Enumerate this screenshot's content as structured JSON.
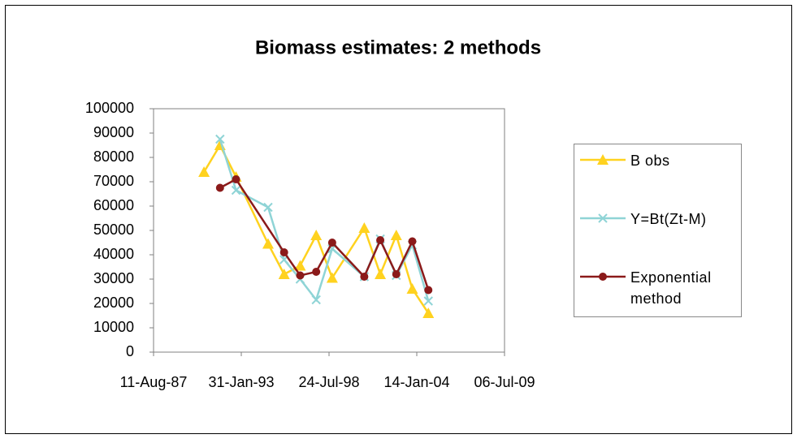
{
  "chart_data": {
    "type": "line",
    "title": "Biomass estimates: 2 methods",
    "xlim": [
      32000,
      40000
    ],
    "xticks": [
      {
        "value": 32000,
        "label": "11-Aug-87"
      },
      {
        "value": 34000,
        "label": "31-Jan-93"
      },
      {
        "value": 36000,
        "label": "24-Jul-98"
      },
      {
        "value": 38000,
        "label": "14-Jan-04"
      },
      {
        "value": 40000,
        "label": "06-Jul-09"
      }
    ],
    "ylim": [
      0,
      100000
    ],
    "yticks": [
      0,
      10000,
      20000,
      30000,
      40000,
      50000,
      60000,
      70000,
      80000,
      90000,
      100000
    ],
    "grid": false,
    "legend": "right",
    "series": [
      {
        "name": "B obs",
        "color": "#ffd21f",
        "marker": "triangle",
        "x": [
          33150,
          33515,
          33880,
          34611,
          34976,
          35342,
          35707,
          36072,
          36803,
          37168,
          37533,
          37898,
          38264
        ],
        "values": [
          74000,
          85000,
          72000,
          44500,
          32000,
          35500,
          48000,
          30500,
          51000,
          32000,
          48000,
          26000,
          16000
        ]
      },
      {
        "name": "Y=Bt(Zt-M)",
        "color": "#8fd4d6",
        "marker": "x",
        "x": [
          33515,
          33880,
          34611,
          34976,
          35342,
          35707,
          36072,
          36803,
          37168,
          37533,
          37898,
          38264
        ],
        "values": [
          87500,
          66500,
          59500,
          38000,
          30000,
          21500,
          42500,
          31000,
          46500,
          31500,
          44000,
          21000
        ]
      },
      {
        "name": "Exponential method",
        "color": "#8b1a1a",
        "marker": "circle",
        "x": [
          33515,
          33880,
          34976,
          35342,
          35707,
          36072,
          36803,
          37168,
          37533,
          37898,
          38264
        ],
        "values": [
          67500,
          71000,
          41000,
          31500,
          33000,
          45000,
          31000,
          46000,
          32000,
          45500,
          25500
        ]
      }
    ]
  }
}
